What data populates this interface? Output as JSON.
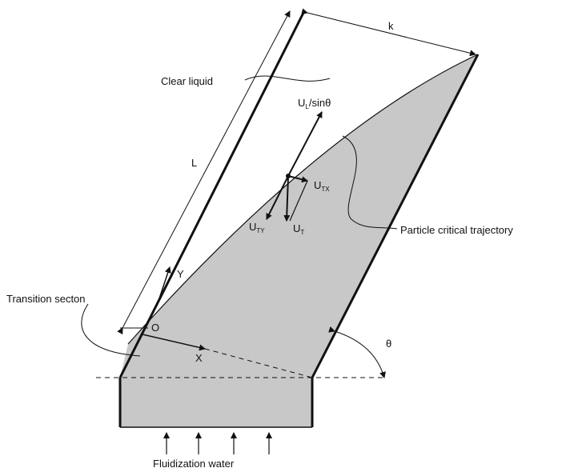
{
  "labels": {
    "clear_liquid": "Clear liquid",
    "k": "k",
    "L": "L",
    "Y": "Y",
    "O": "O",
    "X": "X",
    "theta": "θ",
    "transition_section": "Transition secton",
    "fluidization_water": "Fluidization water",
    "particle_trajectory": "Particle critical trajectory"
  },
  "vectors": {
    "ul_main": "U",
    "ul_sub": "L",
    "ul_suffix": "/sinθ",
    "utx_main": "U",
    "utx_sub": "TX",
    "uty_main": "U",
    "uty_sub": "TY",
    "ut_main": "U",
    "ut_sub": "T"
  },
  "colors": {
    "fill": "#c8c8c8",
    "line": "#111111",
    "background": "#ffffff"
  }
}
